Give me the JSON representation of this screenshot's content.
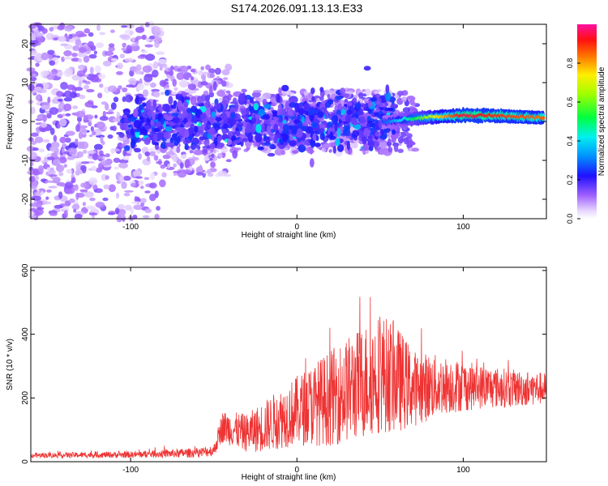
{
  "title": "S174.2026.091.13.13.E33",
  "chart_data": [
    {
      "type": "heatmap",
      "xlabel": "Height of straight line (km)",
      "ylabel": "Frequency (Hz)",
      "xlim": [
        -160,
        150
      ],
      "ylim": [
        -25,
        25
      ],
      "xticks": [
        -100,
        0,
        100
      ],
      "xtick_labels": [
        "-100",
        "0",
        "100"
      ],
      "yticks": [
        -20,
        -10,
        0,
        10,
        20
      ],
      "ytick_labels": [
        "-20",
        "-10",
        "0",
        "10",
        "20"
      ],
      "colorbar": {
        "label": "Normalized spectral amplitude",
        "range": [
          0,
          1
        ],
        "ticks": [
          0.0,
          0.2,
          0.4,
          0.6,
          0.8
        ],
        "tick_labels": [
          "0.0",
          "0.2",
          "0.4",
          "0.6",
          "0.8"
        ]
      },
      "ridge": {
        "description_points": [
          {
            "x": 55,
            "y": 0.0,
            "amp": 0.3
          },
          {
            "x": 70,
            "y": 0.8,
            "amp": 0.5
          },
          {
            "x": 85,
            "y": 1.2,
            "amp": 0.75
          },
          {
            "x": 100,
            "y": 1.6,
            "amp": 0.95
          },
          {
            "x": 120,
            "y": 1.5,
            "amp": 0.9
          },
          {
            "x": 145,
            "y": 1.0,
            "amp": 0.85
          }
        ]
      }
    },
    {
      "type": "line",
      "xlabel": "Height of straight line (km)",
      "ylabel": "SNR (10 * v/v)",
      "xlim": [
        -160,
        150
      ],
      "ylim": [
        0,
        610
      ],
      "xticks": [
        -100,
        0,
        100
      ],
      "xtick_labels": [
        "-100",
        "0",
        "100"
      ],
      "yticks": [
        0,
        200,
        400,
        600
      ],
      "ytick_labels": [
        "0",
        "200",
        "400",
        "600"
      ],
      "color": "#ee3333",
      "envelope": {
        "x": [
          -160,
          -100,
          -60,
          -50,
          -45,
          -30,
          -20,
          0,
          20,
          40,
          50,
          60,
          70,
          90,
          110,
          130,
          150
        ],
        "mean": [
          20,
          22,
          28,
          35,
          110,
          90,
          110,
          160,
          200,
          250,
          280,
          260,
          230,
          240,
          235,
          230,
          230
        ],
        "spread": [
          8,
          10,
          15,
          18,
          50,
          60,
          80,
          110,
          150,
          180,
          190,
          170,
          120,
          90,
          70,
          60,
          50
        ]
      }
    }
  ]
}
